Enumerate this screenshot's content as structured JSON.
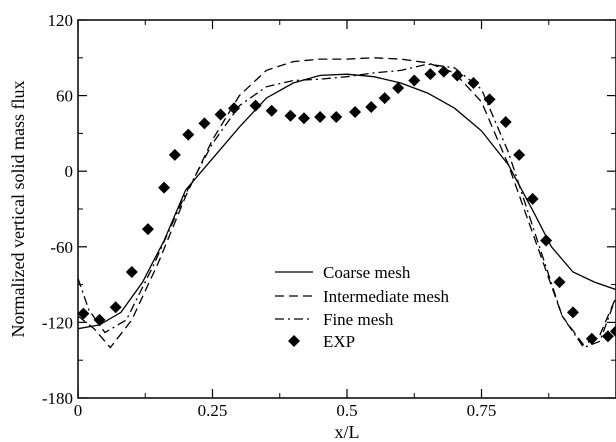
{
  "chart_data": {
    "type": "line",
    "title": "",
    "xlabel": "x/L",
    "ylabel": "Normalized vertical solid mass flux",
    "xlim": [
      0,
      1
    ],
    "ylim": [
      -180,
      120
    ],
    "xticks": [
      0,
      0.25,
      0.5,
      0.75
    ],
    "xtick_labels": [
      "0",
      "0.25",
      "0.5",
      "0.75"
    ],
    "yticks": [
      -180,
      -120,
      -60,
      0,
      60,
      120
    ],
    "ytick_labels": [
      "-180",
      "-120",
      "-60",
      "0",
      "60",
      "120"
    ],
    "grid": false,
    "legend_position": "lower-center",
    "series": [
      {
        "name": "Coarse mesh",
        "style": "solid",
        "points": [
          [
            0.0,
            -125
          ],
          [
            0.04,
            -122
          ],
          [
            0.08,
            -112
          ],
          [
            0.12,
            -88
          ],
          [
            0.16,
            -55
          ],
          [
            0.2,
            -15
          ],
          [
            0.25,
            10
          ],
          [
            0.3,
            35
          ],
          [
            0.35,
            58
          ],
          [
            0.4,
            70
          ],
          [
            0.45,
            76
          ],
          [
            0.5,
            77
          ],
          [
            0.55,
            75
          ],
          [
            0.6,
            70
          ],
          [
            0.65,
            62
          ],
          [
            0.7,
            50
          ],
          [
            0.75,
            32
          ],
          [
            0.8,
            5
          ],
          [
            0.85,
            -35
          ],
          [
            0.88,
            -60
          ],
          [
            0.92,
            -80
          ],
          [
            0.96,
            -88
          ],
          [
            1.0,
            -94
          ]
        ]
      },
      {
        "name": "Intermediate mesh",
        "style": "dashed",
        "points": [
          [
            0.0,
            -115
          ],
          [
            0.03,
            -125
          ],
          [
            0.06,
            -140
          ],
          [
            0.1,
            -118
          ],
          [
            0.15,
            -72
          ],
          [
            0.2,
            -20
          ],
          [
            0.25,
            25
          ],
          [
            0.3,
            60
          ],
          [
            0.35,
            80
          ],
          [
            0.4,
            87
          ],
          [
            0.45,
            89
          ],
          [
            0.5,
            89
          ],
          [
            0.55,
            90
          ],
          [
            0.6,
            89
          ],
          [
            0.65,
            86
          ],
          [
            0.7,
            78
          ],
          [
            0.75,
            55
          ],
          [
            0.8,
            5
          ],
          [
            0.85,
            -55
          ],
          [
            0.9,
            -115
          ],
          [
            0.94,
            -138
          ],
          [
            0.97,
            -130
          ],
          [
            1.0,
            -100
          ]
        ]
      },
      {
        "name": "Fine mesh",
        "style": "dashdot",
        "points": [
          [
            0.0,
            -85
          ],
          [
            0.02,
            -110
          ],
          [
            0.05,
            -128
          ],
          [
            0.09,
            -118
          ],
          [
            0.14,
            -75
          ],
          [
            0.2,
            -18
          ],
          [
            0.25,
            22
          ],
          [
            0.3,
            52
          ],
          [
            0.35,
            67
          ],
          [
            0.4,
            72
          ],
          [
            0.45,
            73
          ],
          [
            0.5,
            75
          ],
          [
            0.55,
            78
          ],
          [
            0.6,
            80
          ],
          [
            0.65,
            85
          ],
          [
            0.7,
            82
          ],
          [
            0.75,
            65
          ],
          [
            0.8,
            15
          ],
          [
            0.85,
            -50
          ],
          [
            0.9,
            -115
          ],
          [
            0.94,
            -140
          ],
          [
            0.97,
            -135
          ],
          [
            1.0,
            -100
          ]
        ]
      }
    ],
    "scatter": {
      "name": "EXP",
      "marker": "diamond",
      "points": [
        [
          0.01,
          -113
        ],
        [
          0.04,
          -118
        ],
        [
          0.07,
          -108
        ],
        [
          0.1,
          -80
        ],
        [
          0.13,
          -46
        ],
        [
          0.16,
          -13
        ],
        [
          0.18,
          13
        ],
        [
          0.205,
          29
        ],
        [
          0.235,
          38
        ],
        [
          0.265,
          45
        ],
        [
          0.29,
          50
        ],
        [
          0.33,
          52
        ],
        [
          0.36,
          48
        ],
        [
          0.395,
          44
        ],
        [
          0.42,
          42
        ],
        [
          0.45,
          43
        ],
        [
          0.48,
          43
        ],
        [
          0.515,
          47
        ],
        [
          0.545,
          51
        ],
        [
          0.57,
          58
        ],
        [
          0.595,
          66
        ],
        [
          0.625,
          72
        ],
        [
          0.655,
          77
        ],
        [
          0.68,
          79
        ],
        [
          0.705,
          76
        ],
        [
          0.735,
          70
        ],
        [
          0.765,
          57
        ],
        [
          0.795,
          39
        ],
        [
          0.82,
          13
        ],
        [
          0.845,
          -22
        ],
        [
          0.87,
          -55
        ],
        [
          0.895,
          -88
        ],
        [
          0.92,
          -112
        ],
        [
          0.955,
          -133
        ],
        [
          0.985,
          -131
        ],
        [
          1.0,
          -127
        ]
      ]
    }
  }
}
